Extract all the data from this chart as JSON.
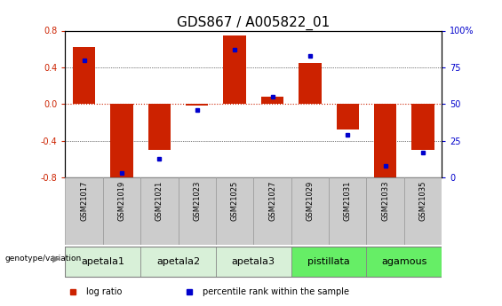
{
  "title": "GDS867 / A005822_01",
  "samples": [
    "GSM21017",
    "GSM21019",
    "GSM21021",
    "GSM21023",
    "GSM21025",
    "GSM21027",
    "GSM21029",
    "GSM21031",
    "GSM21033",
    "GSM21035"
  ],
  "log_ratio": [
    0.62,
    -0.82,
    -0.5,
    -0.02,
    0.75,
    0.08,
    0.45,
    -0.28,
    -0.82,
    -0.5
  ],
  "percentile": [
    80,
    3,
    13,
    46,
    87,
    55,
    83,
    29,
    8,
    17
  ],
  "groups": [
    {
      "label": "apetala1",
      "indices": [
        0,
        1
      ],
      "color": "#d8f0d8"
    },
    {
      "label": "apetala2",
      "indices": [
        2,
        3
      ],
      "color": "#d8f0d8"
    },
    {
      "label": "apetala3",
      "indices": [
        4,
        5
      ],
      "color": "#d8f0d8"
    },
    {
      "label": "pistillata",
      "indices": [
        6,
        7
      ],
      "color": "#66ee66"
    },
    {
      "label": "agamous",
      "indices": [
        8,
        9
      ],
      "color": "#66ee66"
    }
  ],
  "ylim": [
    -0.8,
    0.8
  ],
  "y2lim": [
    0,
    100
  ],
  "bar_color": "#cc2200",
  "dot_color": "#0000cc",
  "left_yticks": [
    -0.8,
    -0.4,
    0.0,
    0.4,
    0.8
  ],
  "right_yticks": [
    0,
    25,
    50,
    75,
    100
  ],
  "legend_log_ratio": "log ratio",
  "legend_percentile": "percentile rank within the sample",
  "title_fontsize": 11,
  "sample_label_fontsize": 6,
  "group_label_fontsize": 8,
  "tick_fontsize": 7,
  "sample_box_color": "#cccccc",
  "sample_box_edge": "#999999"
}
